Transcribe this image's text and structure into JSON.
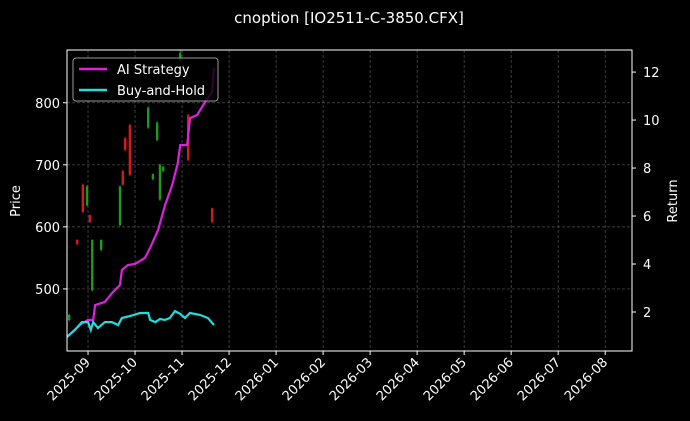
{
  "chart_data": {
    "type": "candlestick",
    "title": "cnoption [IO2511-C-3850.CFX]",
    "ylabel": "Price",
    "y2label": "Return",
    "xlim": [
      -0.447,
      11.57
    ],
    "xticks": [
      {
        "value": 0,
        "label": "2025-09"
      },
      {
        "value": 1,
        "label": "2025-10"
      },
      {
        "value": 2,
        "label": "2025-11"
      },
      {
        "value": 3,
        "label": "2025-12"
      },
      {
        "value": 4,
        "label": "2026-01"
      },
      {
        "value": 5,
        "label": "2026-02"
      },
      {
        "value": 6,
        "label": "2026-03"
      },
      {
        "value": 7,
        "label": "2026-04"
      },
      {
        "value": 8,
        "label": "2026-05"
      },
      {
        "value": 9,
        "label": "2026-06"
      },
      {
        "value": 10,
        "label": "2026-07"
      },
      {
        "value": 11,
        "label": "2026-08"
      }
    ],
    "ylim": [
      400,
      885
    ],
    "yticks": [
      500,
      600,
      700,
      800
    ],
    "y2lim": [
      0.375,
      12.92
    ],
    "y2ticks": [
      2,
      4,
      6,
      8,
      10,
      12
    ],
    "grid": true,
    "legend": "upper left",
    "up_color": "#1f9a1f",
    "down_color": "#d41a1a",
    "candles": {
      "x": [
        -0.4,
        -0.23,
        -0.11,
        -0.02,
        0.04,
        0.09,
        0.28,
        0.68,
        0.74,
        0.79,
        0.89,
        1.28,
        1.38,
        1.47,
        1.53,
        1.6,
        1.96,
        2.13,
        2.64
      ],
      "open": [
        450,
        579,
        668,
        635,
        619,
        498,
        563,
        603,
        690,
        743,
        764,
        760,
        677,
        740,
        644,
        690,
        868,
        780,
        630
      ],
      "high": [
        460,
        580,
        670,
        667,
        620,
        580,
        580,
        667,
        692,
        745,
        766,
        794,
        686,
        770,
        702,
        698,
        885,
        782,
        631
      ],
      "low": [
        448,
        571,
        622,
        633,
        606,
        496,
        561,
        601,
        666,
        722,
        682,
        758,
        675,
        738,
        642,
        688,
        866,
        706,
        606
      ],
      "close": [
        458,
        572,
        624,
        665,
        608,
        579,
        579,
        665,
        668,
        724,
        684,
        792,
        685,
        768,
        700,
        697,
        880,
        708,
        608
      ]
    },
    "series": [
      {
        "name": "AI Strategy",
        "color": "#dd22dd",
        "axis": "y2",
        "type": "line",
        "x": [
          -0.45,
          -0.17,
          0.0,
          0.11,
          0.15,
          0.36,
          0.51,
          0.68,
          0.72,
          0.85,
          1.0,
          1.21,
          1.32,
          1.49,
          1.64,
          1.79,
          1.91,
          1.96,
          2.11,
          2.17,
          2.32,
          2.49,
          2.64,
          2.68
        ],
        "values": [
          0.96,
          1.46,
          1.67,
          1.67,
          2.29,
          2.42,
          2.79,
          3.13,
          3.75,
          3.96,
          4.0,
          4.25,
          4.67,
          5.42,
          6.46,
          7.29,
          8.21,
          8.96,
          8.96,
          10.08,
          10.21,
          10.75,
          11.17,
          12.17
        ]
      },
      {
        "name": "Buy-and-Hold",
        "color": "#22dddd",
        "axis": "y2",
        "type": "line",
        "x": [
          -0.45,
          -0.28,
          -0.13,
          0,
          0.06,
          0.11,
          0.21,
          0.36,
          0.51,
          0.64,
          0.72,
          0.89,
          1.11,
          1.28,
          1.32,
          1.43,
          1.53,
          1.64,
          1.74,
          1.85,
          1.96,
          2.06,
          2.17,
          2.38,
          2.55,
          2.68
        ],
        "values": [
          0.96,
          1.25,
          1.58,
          1.58,
          1.25,
          1.58,
          1.33,
          1.58,
          1.58,
          1.46,
          1.75,
          1.83,
          1.96,
          1.96,
          1.67,
          1.58,
          1.71,
          1.67,
          1.75,
          2.04,
          1.92,
          1.75,
          1.96,
          1.88,
          1.75,
          1.46
        ]
      }
    ]
  }
}
